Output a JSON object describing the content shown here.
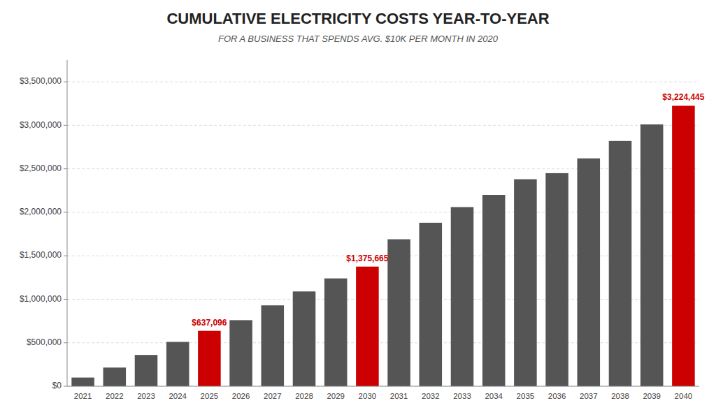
{
  "chart_data": {
    "type": "bar",
    "title": "CUMULATIVE ELECTRICITY COSTS YEAR-TO-YEAR",
    "subtitle": "FOR A BUSINESS THAT SPENDS AVG. $10K PER MONTH IN 2020",
    "categories": [
      "2021",
      "2022",
      "2023",
      "2024",
      "2025",
      "2026",
      "2027",
      "2028",
      "2029",
      "2030",
      "2031",
      "2032",
      "2033",
      "2034",
      "2035",
      "2036",
      "2037",
      "2038",
      "2039",
      "2040"
    ],
    "values": [
      100000,
      215000,
      360000,
      510000,
      637096,
      760000,
      930000,
      1090000,
      1240000,
      1375665,
      1690000,
      1880000,
      2060000,
      2200000,
      2380000,
      2450000,
      2620000,
      2820000,
      3010000,
      3224445
    ],
    "colors": [
      "#555555",
      "#555555",
      "#555555",
      "#555555",
      "#cc0000",
      "#555555",
      "#555555",
      "#555555",
      "#555555",
      "#cc0000",
      "#555555",
      "#555555",
      "#555555",
      "#555555",
      "#555555",
      "#555555",
      "#555555",
      "#555555",
      "#555555",
      "#cc0000"
    ],
    "data_labels": true,
    "value_labels": [
      null,
      null,
      null,
      null,
      "$637,096",
      null,
      null,
      null,
      null,
      "$1,375,665",
      null,
      null,
      null,
      null,
      null,
      null,
      null,
      null,
      null,
      "$3,224,445"
    ],
    "ylim": [
      0,
      3750000
    ],
    "yticks": [
      {
        "value": 0,
        "label": "$0"
      },
      {
        "value": 500000,
        "label": "$500,000"
      },
      {
        "value": 1000000,
        "label": "$1,000,000"
      },
      {
        "value": 1500000,
        "label": "$1,500,000"
      },
      {
        "value": 2000000,
        "label": "$2,000,000"
      },
      {
        "value": 2500000,
        "label": "$2,500,000"
      },
      {
        "value": 3000000,
        "label": "$3,000,000"
      },
      {
        "value": 3500000,
        "label": "$3,500,000"
      }
    ],
    "grid": true
  }
}
